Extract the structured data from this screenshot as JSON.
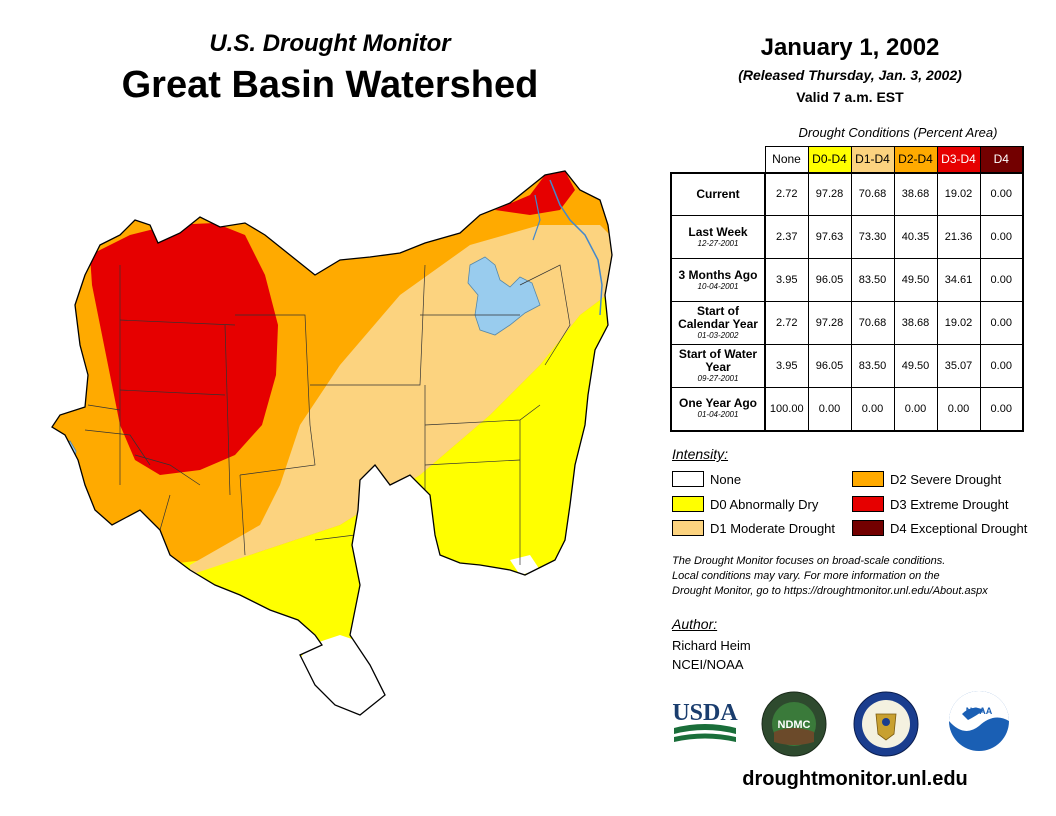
{
  "header": {
    "subtitle": "U.S. Drought Monitor",
    "title": "Great Basin Watershed",
    "date": "January 1, 2002",
    "released": "(Released Thursday, Jan. 3, 2002)",
    "valid": "Valid 7 a.m. EST"
  },
  "table": {
    "caption": "Drought Conditions (Percent Area)",
    "columns": [
      {
        "label": "None",
        "color": "#ffffff",
        "text_color": "#000000"
      },
      {
        "label": "D0-D4",
        "color": "#ffff00",
        "text_color": "#000000"
      },
      {
        "label": "D1-D4",
        "color": "#fcd37f",
        "text_color": "#000000"
      },
      {
        "label": "D2-D4",
        "color": "#ffaa00",
        "text_color": "#000000"
      },
      {
        "label": "D3-D4",
        "color": "#e60000",
        "text_color": "#ffffff"
      },
      {
        "label": "D4",
        "color": "#730000",
        "text_color": "#ffffff"
      }
    ],
    "rows": [
      {
        "label": "Current",
        "sublabel": "",
        "values": [
          "2.72",
          "97.28",
          "70.68",
          "38.68",
          "19.02",
          "0.00"
        ]
      },
      {
        "label": "Last Week",
        "sublabel": "12-27-2001",
        "values": [
          "2.37",
          "97.63",
          "73.30",
          "40.35",
          "21.36",
          "0.00"
        ]
      },
      {
        "label": "3 Months Ago",
        "sublabel": "10-04-2001",
        "values": [
          "3.95",
          "96.05",
          "83.50",
          "49.50",
          "34.61",
          "0.00"
        ]
      },
      {
        "label": "Start of Calendar Year",
        "sublabel": "01-03-2002",
        "values": [
          "2.72",
          "97.28",
          "70.68",
          "38.68",
          "19.02",
          "0.00"
        ]
      },
      {
        "label": "Start of Water Year",
        "sublabel": "09-27-2001",
        "values": [
          "3.95",
          "96.05",
          "83.50",
          "49.50",
          "35.07",
          "0.00"
        ]
      },
      {
        "label": "One Year Ago",
        "sublabel": "01-04-2001",
        "values": [
          "100.00",
          "0.00",
          "0.00",
          "0.00",
          "0.00",
          "0.00"
        ]
      }
    ]
  },
  "legend": {
    "title": "Intensity:",
    "items": [
      {
        "label": "None",
        "color": "#ffffff"
      },
      {
        "label": "D0 Abnormally Dry",
        "color": "#ffff00"
      },
      {
        "label": "D1 Moderate Drought",
        "color": "#fcd37f"
      },
      {
        "label": "D2 Severe Drought",
        "color": "#ffaa00"
      },
      {
        "label": "D3 Extreme Drought",
        "color": "#e60000"
      },
      {
        "label": "D4 Exceptional Drought",
        "color": "#730000"
      }
    ]
  },
  "note": [
    "The Drought Monitor focuses on broad-scale conditions.",
    "Local conditions may vary. For more information on the",
    "Drought Monitor, go to https://droughtmonitor.unl.edu/About.aspx"
  ],
  "author": {
    "label": "Author:",
    "name": "Richard Heim",
    "org": "NCEI/NOAA"
  },
  "logos": {
    "usda": "USDA",
    "ndmc": "NDMC",
    "noaa": "NOAA"
  },
  "footer": {
    "url": "droughtmonitor.unl.edu"
  },
  "map": {
    "colors": {
      "none": "#ffffff",
      "d0": "#ffff00",
      "d1": "#fcd37f",
      "d2": "#ffaa00",
      "d3": "#e60000",
      "d4": "#730000",
      "water": "#99ccee"
    }
  }
}
